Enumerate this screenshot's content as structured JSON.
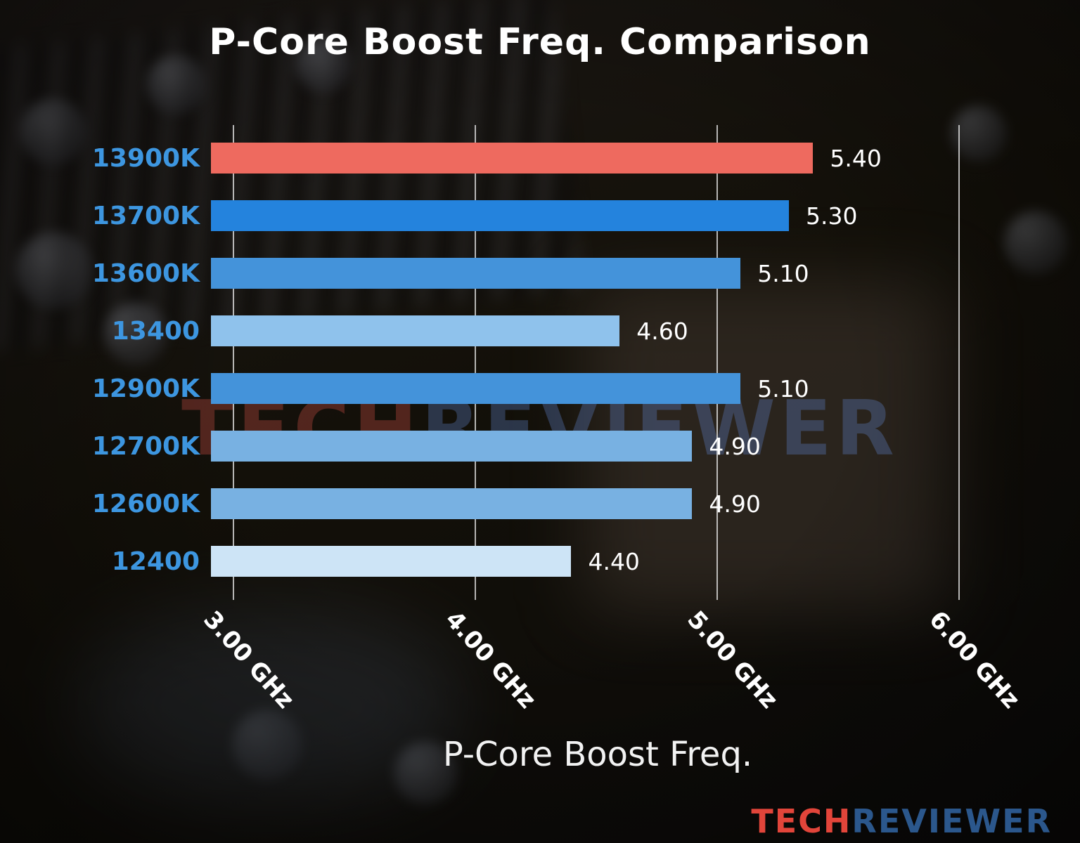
{
  "chart_data": {
    "type": "bar",
    "orientation": "horizontal",
    "title": "P-Core Boost Freq. Comparison",
    "xlabel": "P-Core Boost Freq.",
    "ylabel": "",
    "categories": [
      "13900K",
      "13700K",
      "13600K",
      "13400",
      "12900K",
      "12700K",
      "12600K",
      "12400"
    ],
    "values": [
      5.4,
      5.3,
      5.1,
      4.6,
      5.1,
      4.9,
      4.9,
      4.4
    ],
    "value_labels": [
      "5.40",
      "5.30",
      "5.10",
      "4.60",
      "5.10",
      "4.90",
      "4.90",
      "4.40"
    ],
    "bar_colors": [
      "#ee6a5f",
      "#2483dd",
      "#4493da",
      "#8fc2ec",
      "#4493da",
      "#78b1e2",
      "#78b1e2",
      "#cde4f6"
    ],
    "highlight_color": "#ee6a5f",
    "category_label_color": "#3d96e0",
    "xlim": [
      2.91,
      6.37
    ],
    "ticks": [
      {
        "value": 3,
        "label": "3.00 GHz"
      },
      {
        "value": 4,
        "label": "4.00 GHz"
      },
      {
        "value": 5,
        "label": "5.00 GHz"
      },
      {
        "value": 6,
        "label": "6.00 GHz"
      }
    ],
    "grid": true,
    "legend": false
  },
  "watermark": {
    "part1": "TECH",
    "part2": "REVIEWER"
  },
  "logo": {
    "part1": "TECH",
    "part2": "REVIEWER"
  }
}
